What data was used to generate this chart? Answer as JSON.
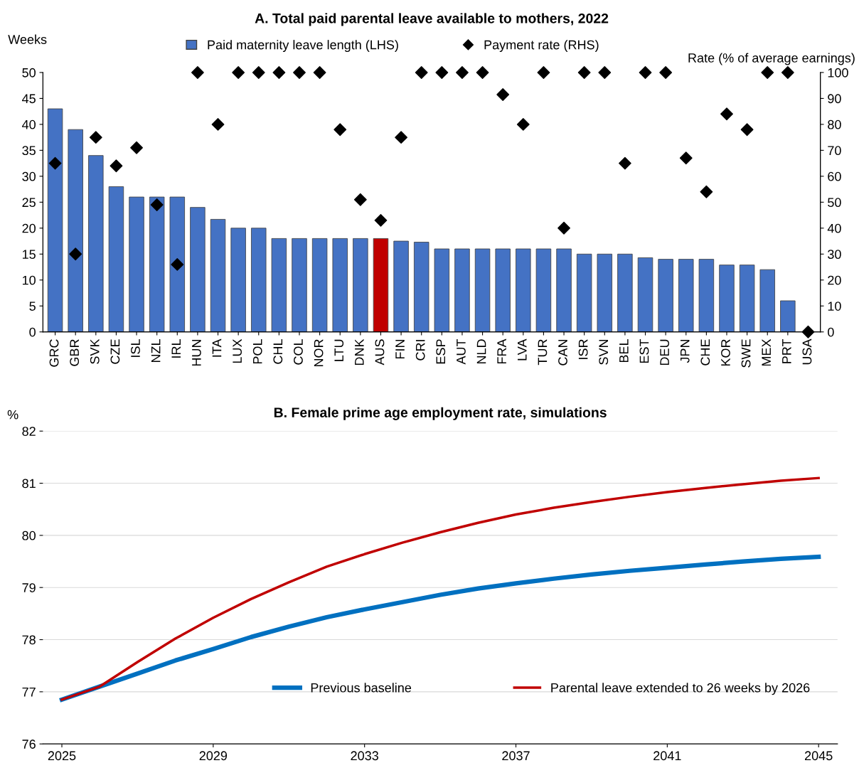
{
  "chart_data": [
    {
      "type": "bar",
      "title": "A. Total paid parental leave available to mothers, 2022",
      "ylabel": "Weeks",
      "y2label": "Rate (% of average earnings)",
      "categories": [
        "GRC",
        "GBR",
        "SVK",
        "CZE",
        "ISL",
        "NZL",
        "IRL",
        "HUN",
        "ITA",
        "LUX",
        "POL",
        "CHL",
        "COL",
        "NOR",
        "LTU",
        "DNK",
        "AUS",
        "FIN",
        "CRI",
        "ESP",
        "AUT",
        "NLD",
        "FRA",
        "LVA",
        "TUR",
        "CAN",
        "ISR",
        "SVN",
        "BEL",
        "EST",
        "DEU",
        "JPN",
        "CHE",
        "KOR",
        "SWE",
        "MEX",
        "PRT",
        "USA"
      ],
      "series": [
        {
          "name": "Paid maternity leave length (LHS)",
          "type": "bar",
          "color": "#4472c4",
          "colors": [
            "#4472c4",
            "#4472c4",
            "#4472c4",
            "#4472c4",
            "#4472c4",
            "#4472c4",
            "#4472c4",
            "#4472c4",
            "#4472c4",
            "#4472c4",
            "#4472c4",
            "#4472c4",
            "#4472c4",
            "#4472c4",
            "#4472c4",
            "#4472c4",
            "#c00000",
            "#4472c4",
            "#4472c4",
            "#4472c4",
            "#4472c4",
            "#4472c4",
            "#4472c4",
            "#4472c4",
            "#4472c4",
            "#4472c4",
            "#4472c4",
            "#4472c4",
            "#4472c4",
            "#4472c4",
            "#4472c4",
            "#4472c4",
            "#4472c4",
            "#4472c4",
            "#4472c4",
            "#4472c4",
            "#4472c4",
            "#4472c4"
          ],
          "values": [
            43,
            39,
            34,
            28,
            26,
            26,
            26,
            24,
            21.7,
            20,
            20,
            18,
            18,
            18,
            18,
            18,
            18,
            17.5,
            17.3,
            16,
            16,
            16,
            16,
            16,
            16,
            16,
            15,
            15,
            15,
            14.3,
            14,
            14,
            14,
            12.9,
            12.9,
            12,
            6,
            0
          ]
        },
        {
          "name": "Payment rate (RHS)",
          "type": "scatter",
          "axis": "y2",
          "marker": "diamond",
          "color": "#000000",
          "values": [
            65,
            30,
            75,
            64,
            71,
            49,
            26,
            100,
            80,
            100,
            100,
            100,
            100,
            100,
            78,
            51,
            43,
            75,
            100,
            100,
            100,
            100,
            91.5,
            80,
            100,
            40,
            100,
            100,
            65,
            100,
            100,
            67,
            54,
            84,
            78,
            100,
            100,
            0
          ]
        }
      ],
      "ylim": [
        0,
        50
      ],
      "yticks": [
        0,
        5,
        10,
        15,
        20,
        25,
        30,
        35,
        40,
        45,
        50
      ],
      "y2lim": [
        0,
        100
      ],
      "y2ticks": [
        0,
        10,
        20,
        30,
        40,
        50,
        60,
        70,
        80,
        90,
        100
      ],
      "grid": false,
      "legend": "top"
    },
    {
      "type": "line",
      "title": "B. Female prime age employment rate, simulations",
      "ylabel": "%",
      "x": [
        2025,
        2026,
        2027,
        2028,
        2029,
        2030,
        2031,
        2032,
        2033,
        2034,
        2035,
        2036,
        2037,
        2038,
        2039,
        2040,
        2041,
        2042,
        2043,
        2044,
        2045
      ],
      "series": [
        {
          "name": "Previous baseline",
          "color": "#0070c0",
          "values": [
            76.85,
            77.1,
            77.35,
            77.6,
            77.82,
            78.05,
            78.25,
            78.43,
            78.58,
            78.72,
            78.86,
            78.98,
            79.08,
            79.17,
            79.25,
            79.32,
            79.38,
            79.44,
            79.5,
            79.55,
            79.59
          ]
        },
        {
          "name": "Parental leave extended to 26 weeks by 2026",
          "color": "#c00000",
          "values": [
            76.85,
            77.1,
            77.57,
            78.02,
            78.42,
            78.78,
            79.1,
            79.4,
            79.64,
            79.86,
            80.06,
            80.24,
            80.4,
            80.53,
            80.64,
            80.74,
            80.83,
            80.91,
            80.98,
            81.05,
            81.1
          ]
        }
      ],
      "xlim": [
        2024.5,
        2045.5
      ],
      "xticks": [
        2025,
        2029,
        2033,
        2037,
        2041,
        2045
      ],
      "ylim": [
        76,
        82
      ],
      "yticks": [
        76,
        77,
        78,
        79,
        80,
        81,
        82
      ],
      "grid": "y",
      "legend": "bottom right",
      "marker": "none",
      "line_style": "solid"
    }
  ]
}
